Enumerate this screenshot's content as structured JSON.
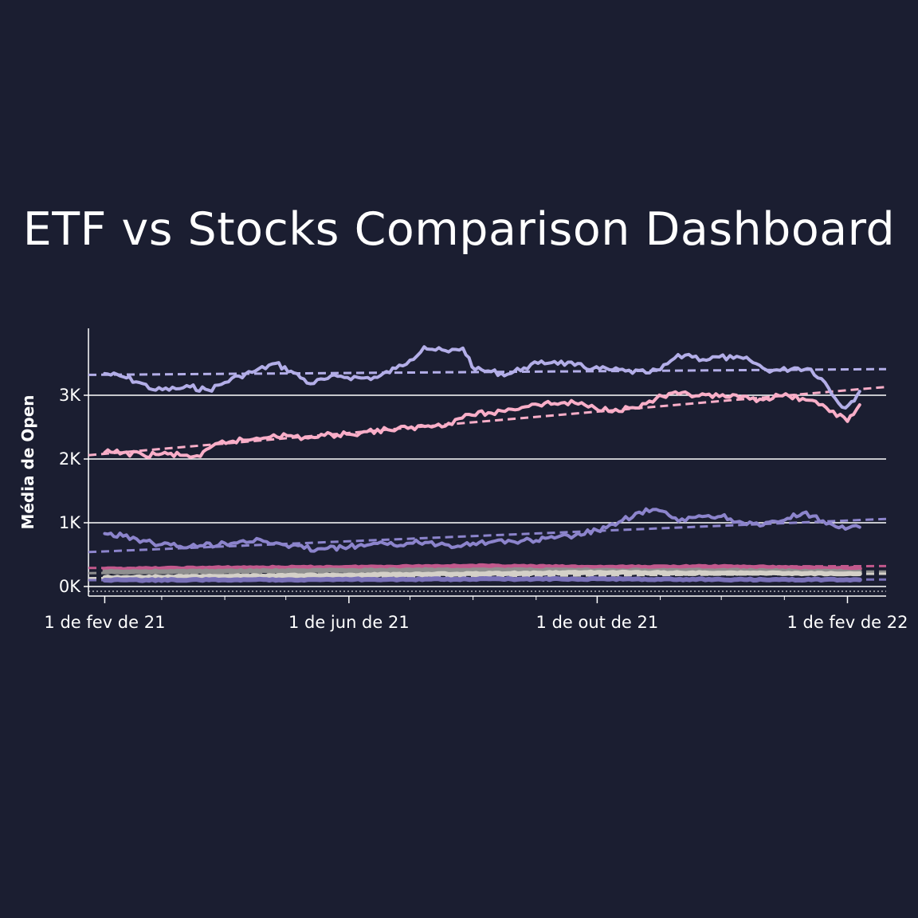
{
  "dashboard": {
    "title": "ETF vs Stocks Comparison Dashboard"
  },
  "chart_data": {
    "type": "line",
    "ylabel": "Média de Open",
    "xlabel": "",
    "x_domain": [
      "2021-01-24",
      "2022-02-20"
    ],
    "ylim": [
      -150,
      4050
    ],
    "y_ticks": [
      {
        "value": 0,
        "label": "0K"
      },
      {
        "value": 1000,
        "label": "1K"
      },
      {
        "value": 2000,
        "label": "2K"
      },
      {
        "value": 3000,
        "label": "3K"
      }
    ],
    "x_ticks": [
      {
        "date": "2021-02-01",
        "label": "1 de fev de 21"
      },
      {
        "date": "2021-06-01",
        "label": "1 de jun de 21"
      },
      {
        "date": "2021-10-01",
        "label": "1 de out de 21"
      },
      {
        "date": "2022-02-01",
        "label": "1 de fev de 22"
      }
    ],
    "minor_x_ticks": [
      "2021-03-01",
      "2021-04-01",
      "2021-05-01",
      "2021-07-01",
      "2021-08-01",
      "2021-09-01",
      "2021-11-01",
      "2021-12-01",
      "2022-01-01"
    ],
    "series": [
      {
        "name": "series-1",
        "color": "#b3aee8",
        "x": [
          "2021-02-01",
          "2021-02-10",
          "2021-02-18",
          "2021-02-26",
          "2021-03-08",
          "2021-03-15",
          "2021-03-24",
          "2021-04-01",
          "2021-04-08",
          "2021-04-16",
          "2021-04-26",
          "2021-05-05",
          "2021-05-13",
          "2021-05-20",
          "2021-05-28",
          "2021-06-07",
          "2021-06-15",
          "2021-06-24",
          "2021-07-01",
          "2021-07-08",
          "2021-07-12",
          "2021-07-20",
          "2021-07-27",
          "2021-08-02",
          "2021-08-10",
          "2021-08-18",
          "2021-08-26",
          "2021-09-02",
          "2021-09-10",
          "2021-09-20",
          "2021-09-29",
          "2021-10-07",
          "2021-10-15",
          "2021-10-25",
          "2021-11-01",
          "2021-11-08",
          "2021-11-15",
          "2021-11-22",
          "2021-11-30",
          "2021-12-07",
          "2021-12-15",
          "2021-12-23",
          "2021-12-30",
          "2022-01-06",
          "2022-01-14",
          "2022-01-21",
          "2022-01-26",
          "2022-01-31",
          "2022-02-03",
          "2022-02-07"
        ],
        "y": [
          3340,
          3290,
          3200,
          3080,
          3100,
          3130,
          3080,
          3200,
          3300,
          3380,
          3500,
          3350,
          3180,
          3250,
          3300,
          3270,
          3280,
          3420,
          3550,
          3760,
          3720,
          3680,
          3740,
          3400,
          3370,
          3330,
          3430,
          3500,
          3530,
          3470,
          3420,
          3400,
          3380,
          3350,
          3400,
          3580,
          3640,
          3560,
          3600,
          3580,
          3550,
          3400,
          3390,
          3430,
          3410,
          3200,
          2950,
          2800,
          2900,
          3060
        ]
      },
      {
        "name": "series-2",
        "color": "#f9aec8",
        "x": [
          "2021-02-01",
          "2021-02-10",
          "2021-02-20",
          "2021-03-01",
          "2021-03-10",
          "2021-03-20",
          "2021-03-29",
          "2021-04-05",
          "2021-04-15",
          "2021-04-25",
          "2021-05-05",
          "2021-05-12",
          "2021-05-20",
          "2021-05-31",
          "2021-06-10",
          "2021-06-20",
          "2021-06-30",
          "2021-07-10",
          "2021-07-20",
          "2021-07-30",
          "2021-08-10",
          "2021-08-20",
          "2021-08-30",
          "2021-09-10",
          "2021-09-20",
          "2021-09-30",
          "2021-10-10",
          "2021-10-20",
          "2021-10-30",
          "2021-11-10",
          "2021-11-20",
          "2021-11-30",
          "2021-12-10",
          "2021-12-20",
          "2021-12-31",
          "2022-01-10",
          "2022-01-18",
          "2022-01-25",
          "2022-02-01",
          "2022-02-07"
        ],
        "y": [
          2100,
          2100,
          2060,
          2080,
          2060,
          2040,
          2250,
          2280,
          2310,
          2380,
          2350,
          2330,
          2370,
          2390,
          2430,
          2460,
          2480,
          2520,
          2560,
          2700,
          2720,
          2780,
          2860,
          2870,
          2880,
          2800,
          2780,
          2800,
          2950,
          3020,
          2990,
          2980,
          2960,
          2940,
          2990,
          2950,
          2850,
          2750,
          2590,
          2850
        ]
      },
      {
        "name": "series-3",
        "color": "#8c84cc",
        "x": [
          "2021-02-01",
          "2021-02-10",
          "2021-02-20",
          "2021-03-01",
          "2021-03-10",
          "2021-03-20",
          "2021-04-01",
          "2021-04-10",
          "2021-04-20",
          "2021-05-01",
          "2021-05-10",
          "2021-05-20",
          "2021-06-01",
          "2021-06-10",
          "2021-06-20",
          "2021-07-01",
          "2021-07-10",
          "2021-07-20",
          "2021-08-01",
          "2021-08-10",
          "2021-08-20",
          "2021-09-01",
          "2021-09-10",
          "2021-09-20",
          "2021-10-01",
          "2021-10-10",
          "2021-10-20",
          "2021-10-30",
          "2021-11-10",
          "2021-11-20",
          "2021-12-01",
          "2021-12-10",
          "2021-12-20",
          "2022-01-01",
          "2022-01-10",
          "2022-01-20",
          "2022-01-31",
          "2022-02-07"
        ],
        "y": [
          830,
          790,
          720,
          660,
          630,
          640,
          680,
          720,
          710,
          650,
          600,
          590,
          620,
          650,
          660,
          680,
          690,
          650,
          680,
          700,
          710,
          720,
          760,
          800,
          880,
          960,
          1150,
          1210,
          1020,
          1110,
          1100,
          1020,
          950,
          1040,
          1150,
          1030,
          900,
          930
        ]
      },
      {
        "name": "series-4",
        "color": "#c2588c",
        "x": [
          "2021-02-01",
          "2021-04-01",
          "2021-06-01",
          "2021-08-01",
          "2021-10-01",
          "2021-12-01",
          "2022-02-07"
        ],
        "y": [
          270,
          290,
          300,
          320,
          300,
          310,
          280
        ]
      },
      {
        "name": "series-5",
        "color": "#8f8f8f",
        "x": [
          "2021-02-01",
          "2021-04-01",
          "2021-06-01",
          "2021-08-01",
          "2021-10-01",
          "2021-12-01",
          "2022-02-07"
        ],
        "y": [
          230,
          240,
          250,
          260,
          250,
          250,
          230
        ]
      },
      {
        "name": "series-6",
        "color": "#d4d0c8",
        "x": [
          "2021-02-01",
          "2021-04-01",
          "2021-06-01",
          "2021-08-01",
          "2021-10-01",
          "2021-12-01",
          "2022-02-07"
        ],
        "y": [
          140,
          160,
          180,
          200,
          220,
          210,
          200
        ]
      },
      {
        "name": "series-7",
        "color": "#7a71b8",
        "x": [
          "2021-02-01",
          "2021-04-01",
          "2021-06-01",
          "2021-08-01",
          "2021-10-01",
          "2021-12-01",
          "2022-02-07"
        ],
        "y": [
          100,
          105,
          110,
          115,
          120,
          110,
          105
        ]
      }
    ],
    "trend_lines": [
      {
        "name": "trend-1",
        "color": "#b3aee8",
        "x": [
          "2021-01-24",
          "2022-02-20"
        ],
        "y": [
          3320,
          3410
        ]
      },
      {
        "name": "trend-2",
        "color": "#f9aec8",
        "x": [
          "2021-01-24",
          "2022-02-20"
        ],
        "y": [
          2060,
          3130
        ]
      },
      {
        "name": "trend-3",
        "color": "#8c84cc",
        "x": [
          "2021-01-24",
          "2022-02-20"
        ],
        "y": [
          540,
          1060
        ]
      },
      {
        "name": "trend-4",
        "color": "#c2588c",
        "x": [
          "2021-01-24",
          "2022-02-20"
        ],
        "y": [
          290,
          320
        ]
      },
      {
        "name": "trend-5",
        "color": "#8f8f8f",
        "x": [
          "2021-01-24",
          "2022-02-20"
        ],
        "y": [
          210,
          235
        ]
      },
      {
        "name": "trend-6",
        "color": "#d4d0c8",
        "x": [
          "2021-01-24",
          "2022-02-20"
        ],
        "y": [
          130,
          200
        ]
      },
      {
        "name": "trend-7",
        "color": "#7a71b8",
        "x": [
          "2021-01-24",
          "2022-02-20"
        ],
        "y": [
          100,
          110
        ]
      }
    ]
  }
}
